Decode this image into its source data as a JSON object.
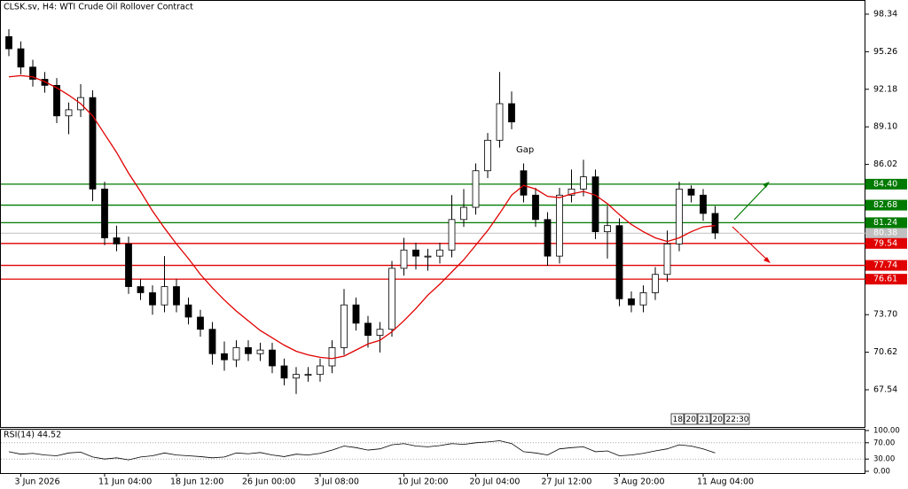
{
  "chart_data": {
    "type": "candlestick",
    "title": "CLSK.sv, H4:  WTI Crude Oil Rollover Contract",
    "annotation": "Gap",
    "categories": [
      null,
      "3 Jun 2026",
      null,
      null,
      null,
      null,
      null,
      null,
      "11 Jun 04:00",
      null,
      null,
      null,
      null,
      null,
      "18 Jun 12:00",
      null,
      null,
      null,
      null,
      null,
      "26 Jun 00:00",
      null,
      null,
      null,
      null,
      null,
      "3 Jul 08:00",
      null,
      null,
      null,
      null,
      null,
      null,
      "10 Jul 20:00",
      null,
      null,
      null,
      null,
      null,
      "20 Jul 04:00",
      null,
      null,
      null,
      null,
      null,
      "27 Jul 12:00",
      null,
      null,
      null,
      null,
      null,
      "3 Aug 20:00",
      null,
      null,
      null,
      null,
      null,
      null,
      "11 Aug 04:00",
      null
    ],
    "open": [
      96.5,
      95.5,
      94.0,
      93.0,
      92.5,
      90.0,
      90.5,
      91.5,
      84.0,
      80.0,
      79.5,
      76.0,
      75.5,
      74.5,
      76.0,
      74.5,
      73.5,
      72.5,
      70.5,
      70.0,
      71.0,
      70.5,
      70.8,
      69.5,
      68.5,
      68.8,
      68.8,
      69.5,
      71.0,
      74.5,
      73.0,
      72.0,
      72.5,
      77.5,
      79.0,
      78.5,
      78.5,
      79.0,
      81.5,
      82.5,
      85.5,
      88.0,
      91.0,
      85.5,
      83.5,
      81.5,
      78.5,
      83.5,
      84.0,
      85.0,
      80.5,
      81.0,
      75.0,
      74.5,
      75.5,
      77.0,
      79.5,
      84.0,
      83.5,
      82.0
    ],
    "high": [
      97.1,
      96.1,
      94.6,
      93.6,
      93.1,
      91.1,
      92.6,
      92.1,
      84.6,
      81.0,
      80.1,
      76.6,
      76.1,
      78.5,
      76.6,
      75.1,
      74.1,
      73.1,
      71.5,
      71.6,
      71.6,
      71.4,
      71.4,
      70.1,
      69.4,
      69.4,
      70.1,
      71.6,
      75.8,
      75.1,
      73.6,
      73.1,
      78.1,
      80.0,
      79.6,
      79.1,
      79.6,
      83.5,
      84.0,
      86.1,
      88.6,
      93.6,
      92.0,
      86.1,
      84.1,
      82.1,
      84.1,
      85.6,
      86.4,
      85.6,
      82.6,
      81.6,
      75.6,
      76.1,
      77.6,
      80.6,
      84.6,
      84.3,
      84.0,
      82.6
    ],
    "low": [
      94.9,
      93.4,
      92.4,
      91.9,
      89.4,
      88.5,
      89.9,
      83.0,
      79.4,
      78.9,
      75.4,
      74.9,
      73.7,
      73.9,
      73.9,
      72.9,
      71.9,
      69.6,
      69.1,
      69.4,
      69.9,
      69.9,
      68.9,
      67.9,
      67.2,
      68.2,
      68.2,
      68.9,
      70.4,
      72.4,
      71.0,
      70.6,
      71.9,
      76.9,
      77.4,
      77.3,
      77.9,
      78.4,
      80.9,
      81.9,
      84.9,
      87.4,
      88.9,
      82.9,
      80.9,
      77.7,
      77.9,
      82.9,
      83.4,
      79.9,
      78.3,
      74.4,
      73.9,
      73.9,
      74.9,
      76.4,
      78.9,
      82.9,
      81.4,
      79.9
    ],
    "close": [
      95.5,
      94.0,
      93.0,
      92.5,
      90.0,
      90.5,
      91.5,
      84.0,
      80.0,
      79.5,
      76.0,
      75.5,
      74.5,
      76.0,
      74.5,
      73.5,
      72.5,
      70.5,
      70.0,
      71.0,
      70.5,
      70.8,
      69.5,
      68.5,
      68.8,
      68.8,
      69.5,
      71.0,
      74.5,
      73.0,
      72.0,
      72.5,
      77.5,
      79.0,
      78.5,
      78.5,
      79.0,
      81.5,
      82.5,
      85.5,
      88.0,
      91.0,
      89.5,
      83.5,
      81.5,
      78.5,
      83.5,
      84.0,
      85.0,
      80.5,
      81.0,
      75.0,
      74.5,
      75.5,
      77.0,
      79.5,
      84.0,
      83.5,
      82.0,
      80.4
    ],
    "candle_color": "#000000",
    "ma": {
      "color": "#e00000",
      "values": [
        93.2,
        93.3,
        93.2,
        92.8,
        92.3,
        91.7,
        91.0,
        90.0,
        88.5,
        87.0,
        85.3,
        83.8,
        82.2,
        80.8,
        79.5,
        78.3,
        77.0,
        75.9,
        74.9,
        74.0,
        73.2,
        72.4,
        71.8,
        71.2,
        70.7,
        70.4,
        70.2,
        70.1,
        70.3,
        70.8,
        71.3,
        71.6,
        72.3,
        73.2,
        74.2,
        75.3,
        76.2,
        77.2,
        78.2,
        79.4,
        80.6,
        82.0,
        83.5,
        84.3,
        84.0,
        83.4,
        83.3,
        83.6,
        83.8,
        83.5,
        82.8,
        81.9,
        81.1,
        80.5,
        80.0,
        79.7,
        80.0,
        80.5,
        80.9,
        81.0
      ]
    },
    "ylim": [
      64.49,
      99.5
    ],
    "yticks": [
      98.34,
      95.26,
      92.18,
      {
        "value": 89.1,
        "label": "89.10"
      },
      86.02,
      {
        "value": 73.7,
        "label": "73.70"
      },
      70.62,
      67.54
    ],
    "levels": [
      {
        "value": 84.4,
        "label": "84.40",
        "color": "#007a00"
      },
      {
        "value": 82.68,
        "label": "82.68",
        "color": "#007a00"
      },
      {
        "value": 81.24,
        "label": "81.24",
        "color": "#007a00"
      },
      {
        "value": 79.54,
        "label": "79.54",
        "color": "#e00000"
      },
      {
        "value": 77.74,
        "label": "77.74",
        "color": "#e00000"
      },
      {
        "value": 76.61,
        "label": "76.61",
        "color": "#e00000"
      }
    ],
    "current_price": {
      "value": 80.38,
      "label": "80.38",
      "color": "#c0c0c0"
    },
    "time_scale_labels": [
      "18:",
      "20",
      "21",
      "20",
      "22:30"
    ],
    "rsi": {
      "title": "RSI(14) 44.52",
      "ylim": [
        0,
        100
      ],
      "yticks": [
        {
          "value": 100,
          "label": "100.00"
        },
        {
          "value": 70,
          "label": "70.00"
        },
        {
          "value": 30,
          "label": "30.00"
        },
        {
          "value": 0,
          "label": "0.00"
        }
      ],
      "values": [
        48,
        42,
        44,
        40,
        38,
        45,
        47,
        35,
        30,
        33,
        28,
        35,
        38,
        45,
        40,
        38,
        36,
        33,
        35,
        45,
        43,
        46,
        40,
        36,
        42,
        40,
        44,
        52,
        62,
        58,
        52,
        55,
        65,
        68,
        62,
        60,
        63,
        68,
        66,
        70,
        72,
        75,
        68,
        48,
        45,
        40,
        55,
        58,
        60,
        48,
        50,
        38,
        40,
        44,
        50,
        55,
        65,
        62,
        55,
        45
      ]
    }
  }
}
